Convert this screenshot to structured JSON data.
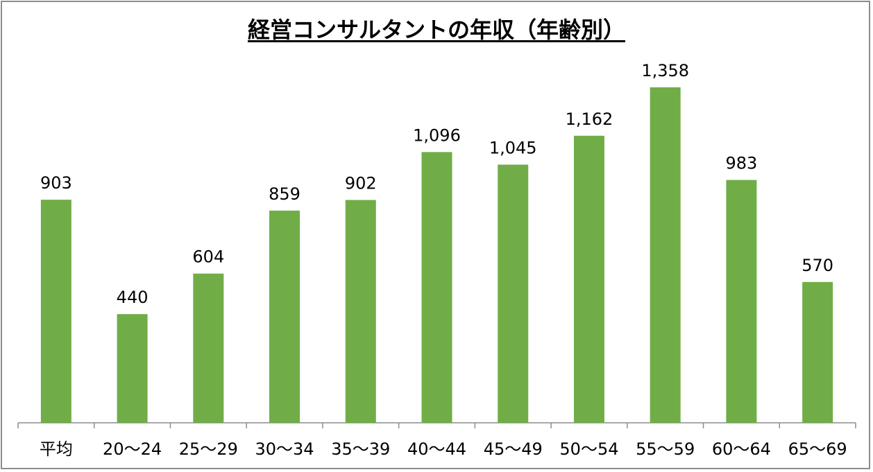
{
  "chart_data": {
    "type": "bar",
    "title": "経営コンサルタントの年収（年齢別）",
    "categories": [
      "平均",
      "20〜24",
      "25〜29",
      "30〜34",
      "35〜39",
      "40〜44",
      "45〜49",
      "50〜54",
      "55〜59",
      "60〜64",
      "65〜69"
    ],
    "values": [
      903,
      440,
      604,
      859,
      902,
      1096,
      1045,
      1162,
      1358,
      983,
      570
    ],
    "value_labels": [
      "903",
      "440",
      "604",
      "859",
      "902",
      "1,096",
      "1,045",
      "1,162",
      "1,358",
      "983",
      "570"
    ],
    "xlabel": "",
    "ylabel": "",
    "ylim": [
      0,
      1400
    ],
    "grid": false,
    "legend": "none",
    "bar_color": "#70ad47"
  }
}
